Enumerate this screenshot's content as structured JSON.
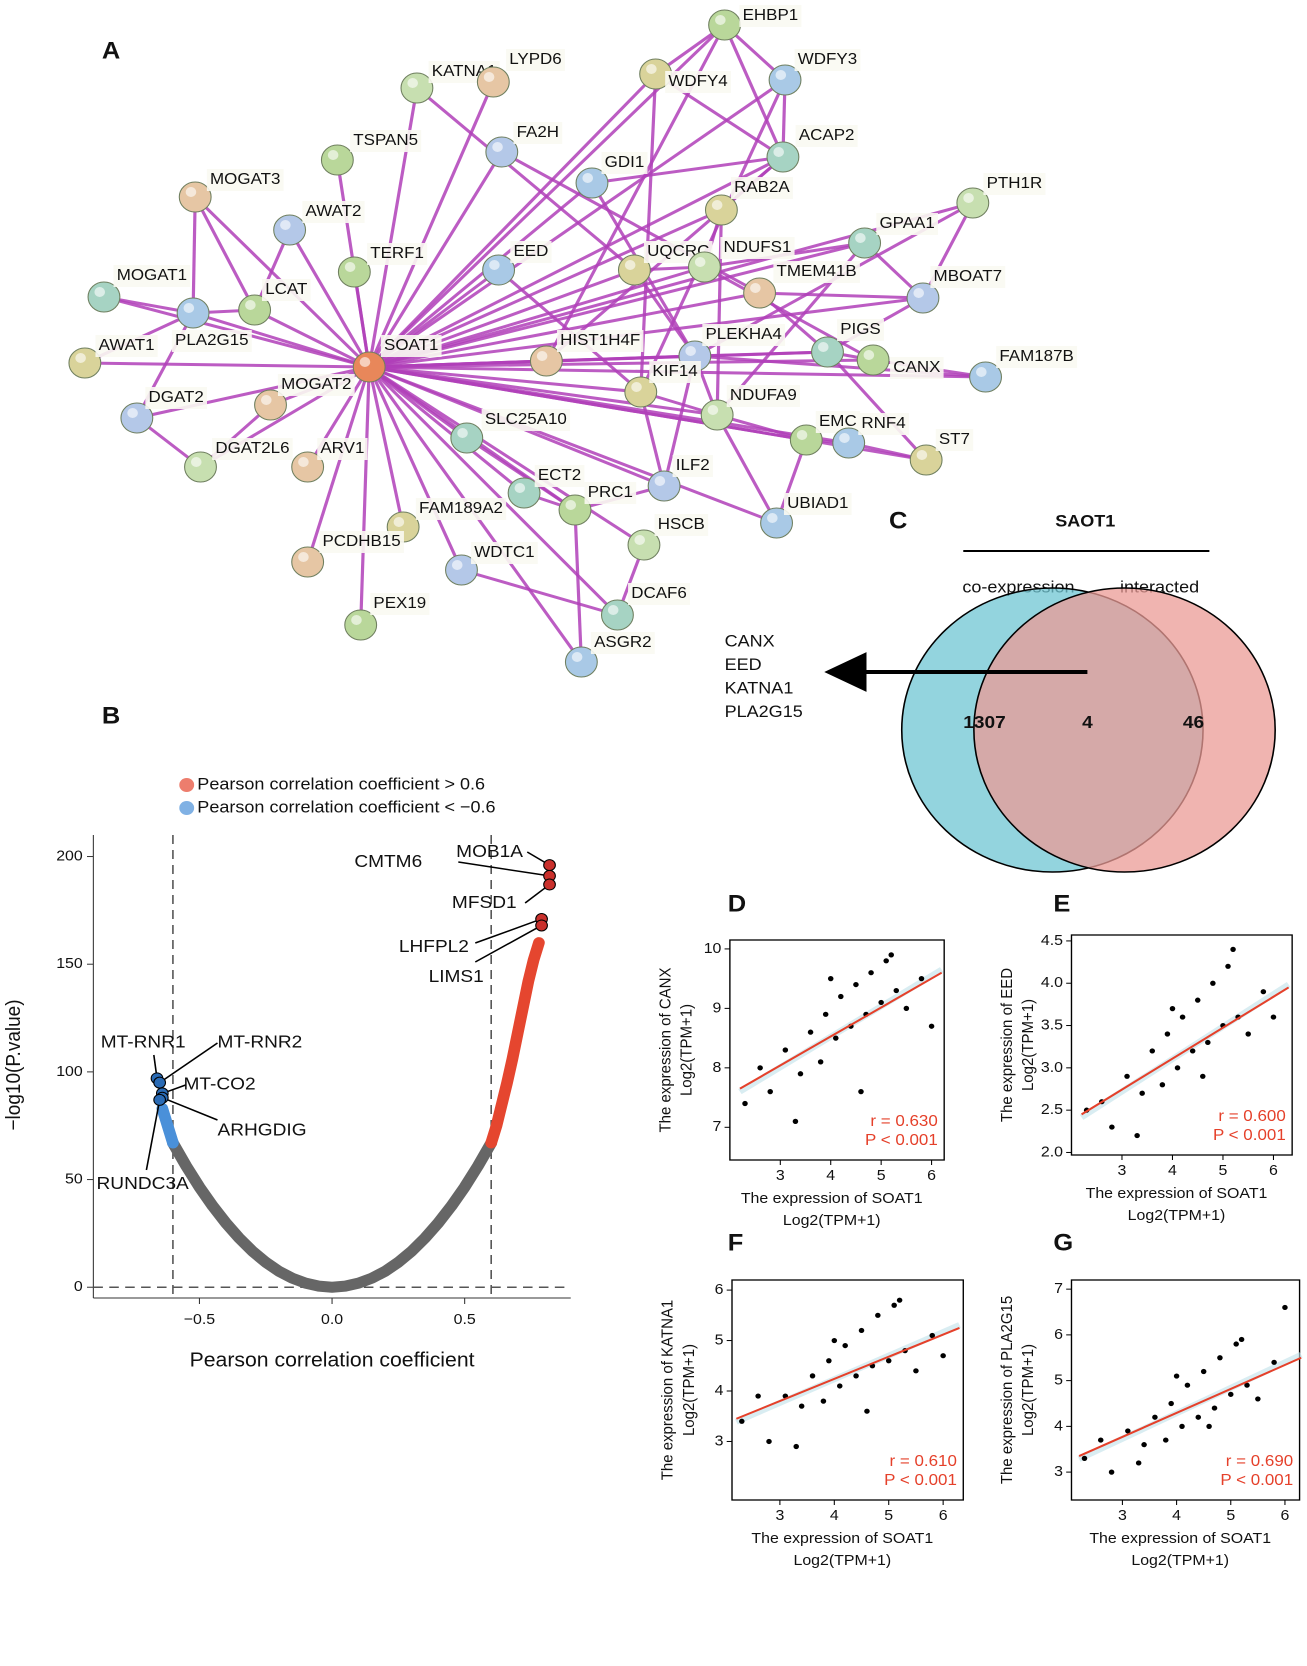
{
  "network": {
    "label": "A",
    "nodes": [
      "EHBP1",
      "WDFY3",
      "WDFY4",
      "KATNA1",
      "LYPD6",
      "FA2H",
      "ACAP2",
      "TSPAN5",
      "GDI1",
      "RAB2A",
      "PTH1R",
      "MOGAT3",
      "AWAT2",
      "GPAA1",
      "TERF1",
      "EED",
      "UQCRC",
      "NDUFS1",
      "TMEM41B",
      "MBOAT7",
      "MOGAT1",
      "LCAT",
      "PLA2G15",
      "AWAT1",
      "SOAT1",
      "HIST1H4F",
      "PLEKHA4",
      "PIGS",
      "CANX",
      "FAM187B",
      "KIF14",
      "NDUFA9",
      "MOGAT2",
      "DGAT2",
      "SLC25A10",
      "EMC",
      "RNF4",
      "ST7",
      "DGAT2L6",
      "ARV1",
      "ILF2",
      "ECT2",
      "PRC1",
      "UBIAD1",
      "FAM189A2",
      "HSCB",
      "PCDHB15",
      "WDTC1",
      "DCAF6",
      "PEX19",
      "ASGR2"
    ]
  },
  "venn": {
    "label": "C",
    "title": "SAOT1",
    "sets": [
      "co-expression",
      "interacted"
    ],
    "counts": [
      1307,
      4,
      46
    ],
    "genes": [
      "CANX",
      "EED",
      "KATNA1",
      "PLA2G15"
    ]
  },
  "chart_data": [
    {
      "type": "scatter",
      "label": "B",
      "xlabel": "Pearson correlation coefficient",
      "ylabel": "−log10(P.value)",
      "xlim": [
        -0.9,
        0.9
      ],
      "ylim": [
        -5,
        210
      ],
      "xticks": [
        {
          "value": -0.5,
          "label": "−0.5"
        },
        {
          "value": 0,
          "label": "0.0"
        },
        0.5
      ],
      "yticks": [
        0,
        50,
        100,
        150,
        200
      ],
      "vlines": [
        -0.6,
        0.6
      ],
      "hlines": [
        0
      ],
      "series": [
        {
          "color": "#666666",
          "x": [
            -0.6,
            -0.55,
            -0.5,
            -0.45,
            -0.4,
            -0.35,
            -0.3,
            -0.25,
            -0.2,
            -0.15,
            -0.1,
            -0.05,
            0,
            0.05,
            0.1,
            0.15,
            0.2,
            0.25,
            0.3,
            0.35,
            0.4,
            0.45,
            0.5,
            0.55,
            0.6
          ],
          "values": [
            67,
            56.3,
            46.5,
            37.7,
            29.8,
            22.8,
            16.7,
            11.6,
            7.4,
            4.2,
            1.9,
            0.5,
            0,
            0.5,
            1.9,
            4.2,
            7.4,
            11.6,
            16.7,
            22.8,
            29.8,
            37.7,
            46.5,
            56.3,
            67
          ]
        },
        {
          "name": "Pearson correlation coefficient > 0.6",
          "color": "#e5462f",
          "x": [
            0.6,
            0.62,
            0.64,
            0.66,
            0.68,
            0.7,
            0.72,
            0.74,
            0.76,
            0.78
          ],
          "values": [
            67,
            75,
            85,
            95,
            106,
            118,
            130,
            142,
            152,
            160
          ]
        },
        {
          "name": "Pearson correlation coefficient < −0.6",
          "color": "#4a90d9",
          "x": [
            -0.6,
            -0.62,
            -0.64
          ],
          "values": [
            67,
            75,
            83
          ]
        }
      ],
      "points": [
        {
          "label": "MOB1A",
          "x": 0.82,
          "y": 196
        },
        {
          "label": "CMTM6",
          "x": 0.82,
          "y": 191
        },
        {
          "label": "MFSD1",
          "x": 0.82,
          "y": 187
        },
        {
          "label": "LHFPL2",
          "x": 0.79,
          "y": 171
        },
        {
          "label": "LIMS1",
          "x": 0.79,
          "y": 168
        },
        {
          "label": "MT-RNR1",
          "x": -0.66,
          "y": 97
        },
        {
          "label": "MT-RNR2",
          "x": -0.65,
          "y": 95
        },
        {
          "label": "MT-CO2",
          "x": -0.64,
          "y": 90
        },
        {
          "label": "ARHGDIG",
          "x": -0.64,
          "y": 88
        },
        {
          "label": "RUNDC3A",
          "x": -0.65,
          "y": 87
        }
      ],
      "point_colors": [
        "#c9302c",
        "#2a6bb5"
      ]
    },
    {
      "type": "scatter",
      "label": "D",
      "xlabel": [
        "The expression of SOAT1",
        "Log2(TPM+1)"
      ],
      "ylabel": [
        "The expression of CANX",
        "Log2(TPM+1)"
      ],
      "xlim": [
        2,
        6.25
      ],
      "ylim": [
        6.45,
        10.15
      ],
      "xticks": [
        3,
        4,
        5,
        6
      ],
      "yticks": [
        7,
        8,
        9,
        10
      ],
      "x": [
        2.3,
        2.8,
        3.1,
        3.4,
        3.6,
        3.8,
        3.9,
        4.1,
        4.2,
        4.4,
        4.5,
        4.7,
        4.8,
        5.0,
        5.1,
        5.3,
        5.5,
        5.8,
        6.0,
        3.3,
        4.6,
        5.2,
        2.6,
        4.0
      ],
      "values": [
        7.4,
        7.6,
        8.3,
        7.9,
        8.6,
        8.1,
        8.9,
        8.5,
        9.2,
        8.7,
        9.4,
        8.9,
        9.6,
        9.1,
        9.8,
        9.3,
        9.0,
        9.5,
        8.7,
        7.1,
        7.6,
        9.9,
        8.0,
        9.5
      ],
      "fit": {
        "x": [
          2.2,
          6.2
        ],
        "values": [
          7.65,
          9.6
        ]
      },
      "stats": [
        "r = 0.630",
        "P < 0.001"
      ],
      "color": "#000000",
      "fit_color": "#e5402a"
    },
    {
      "type": "scatter",
      "label": "E",
      "xlabel": [
        "The expression of SOAT1",
        "Log2(TPM+1)"
      ],
      "ylabel": [
        "The expression of EED",
        "Log2(TPM+1)"
      ],
      "xlim": [
        2,
        6.37
      ],
      "ylim": [
        1.97,
        4.57
      ],
      "xticks": [
        3,
        4,
        5,
        6
      ],
      "yticks": [
        {
          "value": 2,
          "label": "2.0"
        },
        2.5,
        {
          "value": 3,
          "label": "3.0"
        },
        3.5,
        {
          "value": 4,
          "label": "4.0"
        },
        4.5
      ],
      "x": [
        2.3,
        2.8,
        3.1,
        3.4,
        3.6,
        3.8,
        3.9,
        4.1,
        4.2,
        4.4,
        4.5,
        4.7,
        4.8,
        5.0,
        5.1,
        5.3,
        5.5,
        5.8,
        6.0,
        3.3,
        4.6,
        5.2,
        2.6,
        4.0
      ],
      "values": [
        2.5,
        2.3,
        2.9,
        2.7,
        3.2,
        2.8,
        3.4,
        3.0,
        3.6,
        3.2,
        3.8,
        3.3,
        4.0,
        3.5,
        4.2,
        3.6,
        3.4,
        3.9,
        3.6,
        2.2,
        2.9,
        4.4,
        2.6,
        3.7
      ],
      "fit": {
        "x": [
          2.2,
          6.3
        ],
        "values": [
          2.45,
          3.95
        ]
      },
      "stats": [
        "r = 0.600",
        "P < 0.001"
      ],
      "color": "#000000",
      "fit_color": "#e5402a"
    },
    {
      "type": "scatter",
      "label": "F",
      "xlabel": [
        "The expression of SOAT1",
        "Log2(TPM+1)"
      ],
      "ylabel": [
        "The expression of KATNA1",
        "Log2(TPM+1)"
      ],
      "xlim": [
        2.12,
        6.37
      ],
      "ylim": [
        1.84,
        6.2
      ],
      "xticks": [
        3,
        4,
        5,
        6
      ],
      "yticks": [
        3,
        4,
        5,
        6
      ],
      "x": [
        2.3,
        2.8,
        3.1,
        3.4,
        3.6,
        3.8,
        3.9,
        4.1,
        4.2,
        4.4,
        4.5,
        4.7,
        4.8,
        5.0,
        5.1,
        5.3,
        5.5,
        5.8,
        6.0,
        3.3,
        4.6,
        5.2,
        2.6,
        4.0
      ],
      "values": [
        3.4,
        3.0,
        3.9,
        3.7,
        4.3,
        3.8,
        4.6,
        4.1,
        4.9,
        4.3,
        5.2,
        4.5,
        5.5,
        4.6,
        5.7,
        4.8,
        4.4,
        5.1,
        4.7,
        2.9,
        3.6,
        5.8,
        3.9,
        5.0
      ],
      "fit": {
        "x": [
          2.2,
          6.3
        ],
        "values": [
          3.45,
          5.25
        ]
      },
      "stats": [
        "r = 0.610",
        "P < 0.001"
      ],
      "color": "#000000",
      "fit_color": "#e5402a"
    },
    {
      "type": "scatter",
      "label": "G",
      "xlabel": [
        "The expression of SOAT1",
        "Log2(TPM+1)"
      ],
      "ylabel": [
        "The expression of PLA2G15",
        "Log2(TPM+1)"
      ],
      "xlim": [
        2.06,
        6.27
      ],
      "ylim": [
        2.39,
        7.2
      ],
      "xticks": [
        3,
        4,
        5,
        6
      ],
      "yticks": [
        3,
        4,
        5,
        6,
        7
      ],
      "x": [
        2.3,
        2.8,
        3.1,
        3.4,
        3.6,
        3.8,
        3.9,
        4.1,
        4.2,
        4.4,
        4.5,
        4.7,
        4.8,
        5.0,
        5.1,
        5.3,
        5.5,
        5.8,
        6.0,
        3.3,
        4.6,
        5.2,
        2.6,
        4.0
      ],
      "values": [
        3.3,
        3.0,
        3.9,
        3.6,
        4.2,
        3.7,
        4.5,
        4.0,
        4.9,
        4.2,
        5.2,
        4.4,
        5.5,
        4.7,
        5.8,
        4.9,
        4.6,
        5.4,
        6.6,
        3.2,
        4.0,
        5.9,
        3.7,
        5.1
      ],
      "fit": {
        "x": [
          2.2,
          6.3
        ],
        "values": [
          3.35,
          5.5
        ]
      },
      "stats": [
        "r = 0.690",
        "P < 0.001"
      ],
      "color": "#000000",
      "fit_color": "#e5402a"
    }
  ]
}
